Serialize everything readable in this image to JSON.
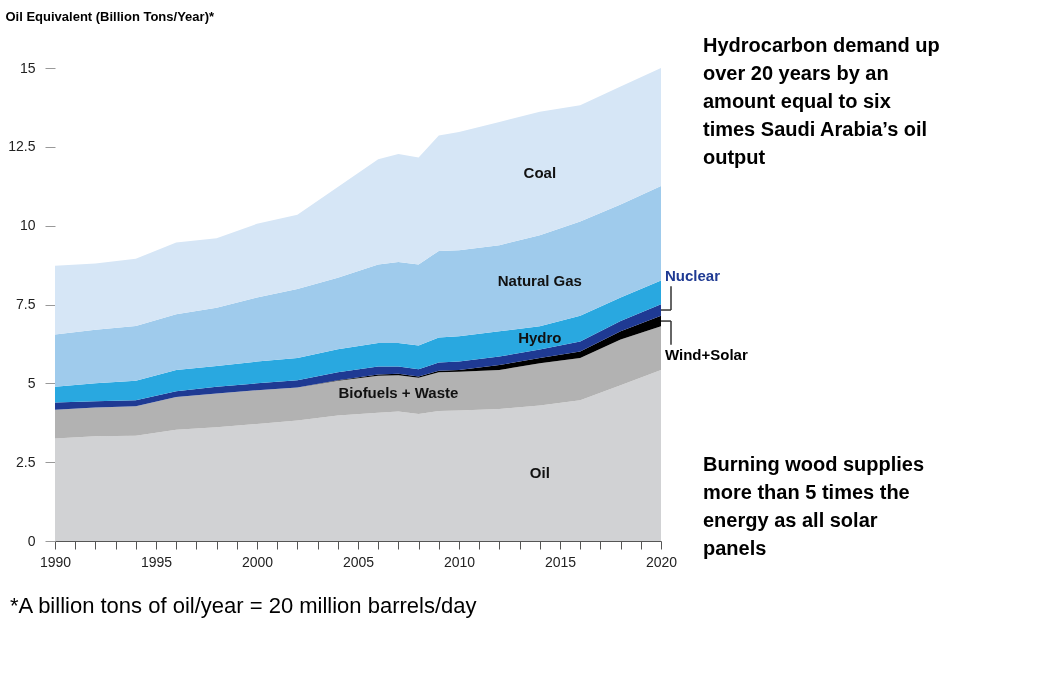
{
  "chart_data": {
    "type": "area",
    "stacked": true,
    "ylabel": "Oil Equivalent (Billion Tons/Year)*",
    "x": [
      1990,
      1992,
      1994,
      1996,
      1998,
      2000,
      2002,
      2004,
      2006,
      2007,
      2008,
      2009,
      2010,
      2012,
      2014,
      2016,
      2018,
      2020
    ],
    "series": [
      {
        "name": "Oil",
        "color": "#d1d2d4",
        "values": [
          3.25,
          3.32,
          3.34,
          3.53,
          3.61,
          3.71,
          3.82,
          3.98,
          4.07,
          4.11,
          4.03,
          4.12,
          4.14,
          4.19,
          4.3,
          4.46,
          4.94,
          5.42
        ]
      },
      {
        "name": "Biofuels + Waste",
        "color": "#b2b2b2",
        "values": [
          0.91,
          0.91,
          0.93,
          1.04,
          1.07,
          1.07,
          1.05,
          1.1,
          1.17,
          1.15,
          1.15,
          1.23,
          1.23,
          1.23,
          1.34,
          1.34,
          1.45,
          1.39
        ]
      },
      {
        "name": "Wind+Solar",
        "color": "#000000",
        "values": [
          0,
          0,
          0,
          0,
          0,
          0,
          0,
          0.02,
          0.04,
          0.04,
          0.04,
          0.05,
          0.05,
          0.16,
          0.16,
          0.21,
          0.26,
          0.33
        ]
      },
      {
        "name": "Nuclear",
        "color": "#1f3a93",
        "values": [
          0.23,
          0.2,
          0.19,
          0.18,
          0.21,
          0.22,
          0.23,
          0.25,
          0.25,
          0.23,
          0.23,
          0.26,
          0.27,
          0.27,
          0.27,
          0.32,
          0.33,
          0.37
        ]
      },
      {
        "name": "Hydro",
        "color": "#29a8e0",
        "values": [
          0.5,
          0.57,
          0.62,
          0.67,
          0.66,
          0.69,
          0.7,
          0.73,
          0.75,
          0.75,
          0.75,
          0.79,
          0.8,
          0.8,
          0.74,
          0.81,
          0.74,
          0.75
        ]
      },
      {
        "name": "Natural Gas",
        "color": "#9fcbec",
        "values": [
          1.66,
          1.7,
          1.74,
          1.77,
          1.85,
          2.03,
          2.19,
          2.27,
          2.49,
          2.57,
          2.57,
          2.75,
          2.73,
          2.73,
          2.89,
          2.99,
          2.95,
          3.0
        ]
      },
      {
        "name": "Coal",
        "color": "#d6e6f6",
        "values": [
          2.18,
          2.1,
          2.13,
          2.28,
          2.2,
          2.34,
          2.36,
          2.88,
          3.34,
          3.42,
          3.39,
          3.66,
          3.75,
          3.91,
          3.91,
          3.69,
          3.74,
          3.74
        ]
      }
    ],
    "xlim": [
      1990,
      2020
    ],
    "xticks": [
      1990,
      {
        "value": 1991,
        "label": null
      },
      {
        "value": 1992,
        "label": null
      },
      {
        "value": 1993,
        "label": null
      },
      {
        "value": 1994,
        "label": null
      },
      1995,
      {
        "value": 1996,
        "label": null
      },
      {
        "value": 1997,
        "label": null
      },
      {
        "value": 1998,
        "label": null
      },
      {
        "value": 1999,
        "label": null
      },
      2000,
      {
        "value": 2001,
        "label": null
      },
      {
        "value": 2002,
        "label": null
      },
      {
        "value": 2003,
        "label": null
      },
      {
        "value": 2004,
        "label": null
      },
      2005,
      {
        "value": 2006,
        "label": null
      },
      {
        "value": 2007,
        "label": null
      },
      {
        "value": 2008,
        "label": null
      },
      {
        "value": 2009,
        "label": null
      },
      2010,
      {
        "value": 2011,
        "label": null
      },
      {
        "value": 2012,
        "label": null
      },
      {
        "value": 2013,
        "label": null
      },
      {
        "value": 2014,
        "label": null
      },
      2015,
      {
        "value": 2016,
        "label": null
      },
      {
        "value": 2017,
        "label": null
      },
      {
        "value": 2018,
        "label": null
      },
      {
        "value": 2019,
        "label": null
      },
      2020
    ],
    "ylim": [
      0,
      15
    ],
    "yticks": [
      0,
      2.5,
      5,
      7.5,
      10,
      12.5,
      15
    ],
    "grid": false,
    "legend": false,
    "annotations": [
      "Hydrocarbon demand up over 20 years by an amount equal to six times Saudi Arabia’s oil output",
      "Burning wood supplies more than 5 times the energy as all solar panels",
      "*A billion tons of oil/year = 20 million barrels/day"
    ]
  }
}
